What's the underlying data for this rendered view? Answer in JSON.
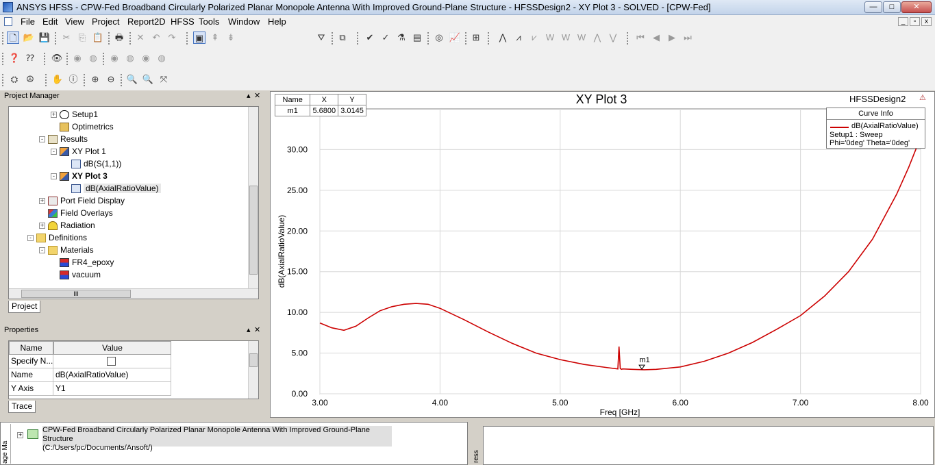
{
  "window": {
    "title": "ANSYS HFSS - CPW-Fed Broadband Circularly Polarized Planar Monopole Antenna With Improved Ground-Plane Structure - HFSSDesign2 - XY Plot 3 - SOLVED - [CPW-Fed]",
    "min": "—",
    "max": "□",
    "close": "✕"
  },
  "menu": [
    "File",
    "Edit",
    "View",
    "Project",
    "Report2D",
    "HFSS",
    "Tools",
    "Window",
    "Help"
  ],
  "mdi_controls": [
    "_",
    "▫",
    "x"
  ],
  "toolbar": {
    "combo_value": ""
  },
  "project_manager": {
    "title": "Project Manager",
    "tree": [
      {
        "label": "Setup1",
        "icon": "setup-icon",
        "indent": 3,
        "expander": "+"
      },
      {
        "label": "Optimetrics",
        "icon": "optimetrics-icon",
        "indent": 3,
        "expander": ""
      },
      {
        "label": "Results",
        "icon": "results-icon",
        "indent": 2,
        "expander": "-"
      },
      {
        "label": "XY Plot 1",
        "icon": "plot-icon",
        "indent": 3,
        "expander": "-"
      },
      {
        "label": "dB(S(1,1))",
        "icon": "trace-icon",
        "indent": 4,
        "expander": ""
      },
      {
        "label": "XY Plot 3",
        "icon": "plot-icon",
        "indent": 3,
        "expander": "-",
        "bold": true
      },
      {
        "label": "dB(AxialRatioValue)",
        "icon": "trace-icon",
        "indent": 4,
        "expander": "",
        "selected": true
      },
      {
        "label": "Port Field Display",
        "icon": "port-field-icon",
        "indent": 2,
        "expander": "+"
      },
      {
        "label": "Field Overlays",
        "icon": "field-overlays-icon",
        "indent": 2,
        "expander": ""
      },
      {
        "label": "Radiation",
        "icon": "radiation-icon",
        "indent": 2,
        "expander": "+"
      },
      {
        "label": "Definitions",
        "icon": "folder-icon",
        "indent": 1,
        "expander": "-"
      },
      {
        "label": "Materials",
        "icon": "folder-icon",
        "indent": 2,
        "expander": "-"
      },
      {
        "label": "FR4_epoxy",
        "icon": "material-icon",
        "indent": 3,
        "expander": ""
      },
      {
        "label": "vacuum",
        "icon": "material-icon",
        "indent": 3,
        "expander": ""
      }
    ],
    "tab": "Project",
    "scroll_label": "III"
  },
  "properties": {
    "title": "Properties",
    "columns": [
      "Name",
      "Value"
    ],
    "rows": [
      {
        "name": "Specify N...",
        "value": ""
      },
      {
        "name": "Name",
        "value": "dB(AxialRatioValue)"
      },
      {
        "name": "Y Axis",
        "value": "Y1"
      }
    ],
    "tab": "Trace"
  },
  "plot": {
    "design_label": "HFSSDesign2",
    "marker_table": {
      "headers": [
        "Name",
        "X",
        "Y"
      ],
      "row": [
        "m1",
        "5.6800",
        "3.0145"
      ]
    },
    "curve_info": {
      "title": "Curve Info",
      "entry": "dB(AxialRatioValue)",
      "line2": "Setup1 : Sweep",
      "line3": "Phi='0deg' Theta='0deg'"
    },
    "marker_label": "m1"
  },
  "chart_data": {
    "type": "line",
    "title": "XY Plot 3",
    "xlabel": "Freq [GHz]",
    "ylabel": "dB(AxialRatioValue)",
    "xlim": [
      3.0,
      8.0
    ],
    "ylim": [
      0.0,
      35.0
    ],
    "xticks": [
      "3.00",
      "4.00",
      "5.00",
      "6.00",
      "7.00",
      "8.00"
    ],
    "yticks": [
      "0.00",
      "5.00",
      "10.00",
      "15.00",
      "20.00",
      "25.00",
      "30.00"
    ],
    "grid": true,
    "legend": "top-right",
    "series": [
      {
        "name": "dB(AxialRatioValue)",
        "color": "#cc0000",
        "x": [
          3.0,
          3.1,
          3.2,
          3.3,
          3.4,
          3.5,
          3.6,
          3.7,
          3.8,
          3.9,
          4.0,
          4.2,
          4.4,
          4.6,
          4.8,
          5.0,
          5.2,
          5.4,
          5.48,
          5.49,
          5.5,
          5.51,
          5.52,
          5.6,
          5.7,
          5.8,
          6.0,
          6.2,
          6.4,
          6.6,
          6.8,
          7.0,
          7.2,
          7.4,
          7.6,
          7.8,
          7.9,
          8.0
        ],
        "y": [
          8.7,
          8.1,
          7.8,
          8.3,
          9.3,
          10.2,
          10.7,
          11.0,
          11.1,
          11.0,
          10.5,
          9.1,
          7.6,
          6.2,
          5.0,
          4.2,
          3.6,
          3.2,
          3.05,
          5.8,
          3.1,
          3.0,
          3.05,
          3.0,
          2.95,
          3.0,
          3.3,
          4.0,
          5.0,
          6.3,
          7.9,
          9.6,
          12.0,
          15.0,
          19.0,
          24.5,
          27.8,
          31.5
        ]
      }
    ],
    "markers": [
      {
        "name": "m1",
        "x": 5.68,
        "y": 3.0145
      }
    ]
  },
  "message_manager": {
    "side_label": "age Ma",
    "project_line1": "CPW-Fed Broadband Circularly Polarized Planar Monopole Antenna With Improved Ground-Plane Structure",
    "project_line2": "(C:/Users/pc/Documents/Ansoft/)"
  },
  "progress": {
    "side_label": "ress"
  }
}
